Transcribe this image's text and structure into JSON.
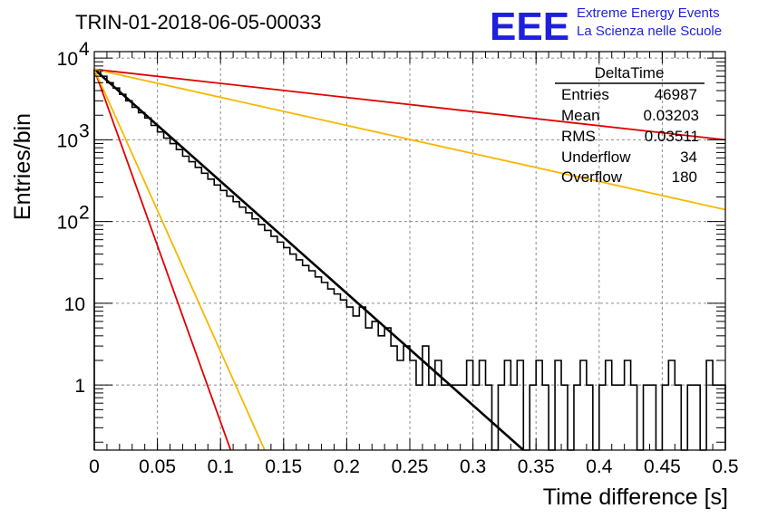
{
  "header": {
    "title": "TRIN-01-2018-06-05-00033",
    "logo": "EEE",
    "logo_line1": "Extreme Energy Events",
    "logo_line2": "La Scienza nelle Scuole"
  },
  "stats": {
    "title": "DeltaTime",
    "rows": [
      {
        "label": "Entries",
        "value": "46987"
      },
      {
        "label": "Mean",
        "value": "0.03203"
      },
      {
        "label": "RMS",
        "value": "0.03511"
      },
      {
        "label": "Underflow",
        "value": "34"
      },
      {
        "label": "Overflow",
        "value": "180"
      }
    ]
  },
  "chart_data": {
    "type": "line",
    "title": "TRIN-01-2018-06-05-00033",
    "xlabel": "Time difference [s]",
    "ylabel": "Entries/bin",
    "xlim": [
      0,
      0.5
    ],
    "ylim": [
      0.16,
      12000
    ],
    "yscale": "log",
    "grid": true,
    "legend": "top-right",
    "x_ticks": [
      "0",
      "0.05",
      "0.1",
      "0.15",
      "0.2",
      "0.25",
      "0.3",
      "0.35",
      "0.4",
      "0.45",
      "0.5"
    ],
    "y_ticks": [
      "1",
      "10",
      "10^2",
      "10^3",
      "10^4"
    ],
    "histogram": {
      "bin_width": 0.005,
      "color": "#000000",
      "values": [
        7200,
        6000,
        5000,
        4300,
        3600,
        3000,
        2500,
        2150,
        1850,
        1500,
        1250,
        1050,
        900,
        760,
        630,
        540,
        460,
        390,
        330,
        280,
        240,
        205,
        175,
        150,
        128,
        108,
        92,
        78,
        66,
        56,
        48,
        40,
        34,
        29,
        25,
        21,
        18,
        15,
        13,
        11,
        9,
        7,
        9,
        5,
        6,
        4,
        5,
        3,
        2,
        3,
        2,
        1,
        3,
        1,
        2,
        1,
        1,
        1,
        1,
        2,
        1,
        2,
        1,
        0,
        1,
        2,
        1,
        2,
        0,
        1,
        2,
        1,
        0,
        2,
        1,
        0,
        1,
        2,
        1,
        0,
        1,
        2,
        1,
        1,
        2,
        1,
        0,
        1,
        1,
        0,
        1,
        2,
        1,
        0,
        1,
        1,
        0,
        2,
        1,
        1
      ]
    },
    "series": [
      {
        "color": "#000000",
        "x": [
          0,
          0.34
        ],
        "y": [
          7300,
          0.16
        ]
      },
      {
        "color": "#e00000",
        "x": [
          0,
          0.108
        ],
        "y": [
          7300,
          0.16
        ]
      },
      {
        "color": "#f5b800",
        "x": [
          0,
          0.135
        ],
        "y": [
          7300,
          0.16
        ]
      },
      {
        "color": "#e00000",
        "x": [
          0,
          0.5
        ],
        "y": [
          7300,
          1000
        ]
      },
      {
        "color": "#f5b800",
        "x": [
          0,
          0.5
        ],
        "y": [
          7300,
          140
        ]
      }
    ]
  }
}
